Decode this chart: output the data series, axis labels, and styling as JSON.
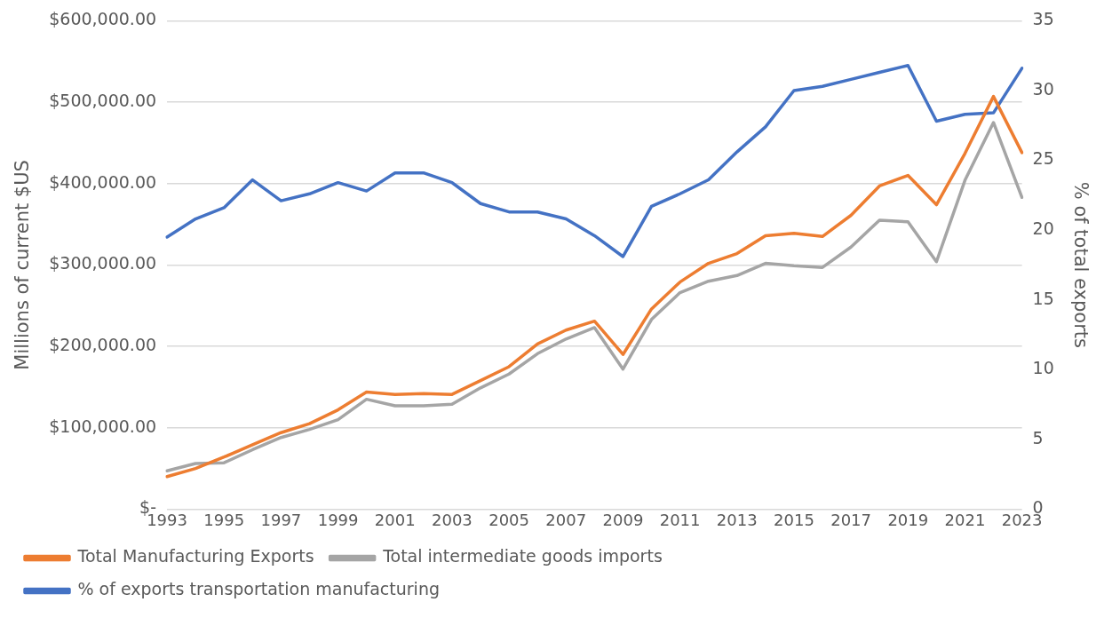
{
  "chart_data": {
    "type": "line",
    "categories": [
      "1993",
      null,
      "1995",
      null,
      "1997",
      null,
      "1999",
      null,
      "2001",
      null,
      "2003",
      null,
      "2005",
      null,
      "2007",
      null,
      "2009",
      null,
      "2011",
      null,
      "2013",
      null,
      "2015",
      null,
      "2017",
      null,
      "2019",
      null,
      "2021",
      null,
      "2023"
    ],
    "series": [
      {
        "name": "Total Manufacturing Exports",
        "color": "#ed7d31",
        "values": [
          40000,
          50000,
          64000,
          79000,
          94000,
          105000,
          122000,
          144000,
          141000,
          142000,
          141000,
          158000,
          175000,
          203000,
          220000,
          231000,
          190000,
          246000,
          279000,
          302000,
          314000,
          336000,
          339000,
          335000,
          361000,
          397000,
          410000,
          374000,
          437000,
          507000,
          438000
        ]
      },
      {
        "name": "Total intermediate goods imports",
        "color": "#a5a5a5",
        "values": [
          47000,
          56000,
          57000,
          73000,
          88000,
          98000,
          110000,
          135000,
          127000,
          127000,
          129000,
          149000,
          166000,
          191000,
          209000,
          223000,
          172000,
          233000,
          266000,
          280000,
          287000,
          302000,
          299000,
          297000,
          322000,
          355000,
          353000,
          304000,
          404000,
          475000,
          383000
        ]
      },
      {
        "name": "% of exports transportation manufacturing",
        "color": "#4472c4",
        "axis": "y2",
        "values": [
          19.5,
          20.8,
          21.6,
          23.6,
          22.1,
          22.6,
          23.4,
          22.8,
          24.1,
          24.1,
          23.4,
          21.9,
          21.3,
          21.3,
          20.8,
          19.6,
          18.1,
          21.7,
          22.6,
          23.6,
          25.6,
          27.4,
          30.0,
          30.3,
          30.8,
          31.3,
          31.8,
          27.8,
          28.3,
          28.4,
          31.6
        ]
      }
    ],
    "ylabel": "Millions of current $US",
    "y2label": "% of total exports",
    "ylim": [
      0,
      600000
    ],
    "yticks": [
      {
        "value": 0,
        "label": "$-"
      },
      {
        "value": 100000,
        "label": "$100,000.00"
      },
      {
        "value": 200000,
        "label": "$200,000.00"
      },
      {
        "value": 300000,
        "label": "$300,000.00"
      },
      {
        "value": 400000,
        "label": "$400,000.00"
      },
      {
        "value": 500000,
        "label": "$500,000.00"
      },
      {
        "value": 600000,
        "label": "$600,000.00"
      }
    ],
    "y2lim": [
      0,
      35
    ],
    "y2ticks": [
      0,
      5,
      10,
      15,
      20,
      25,
      30,
      35
    ],
    "grid": "y",
    "legend": "bottom",
    "marker": "none",
    "line_style": "solid"
  }
}
